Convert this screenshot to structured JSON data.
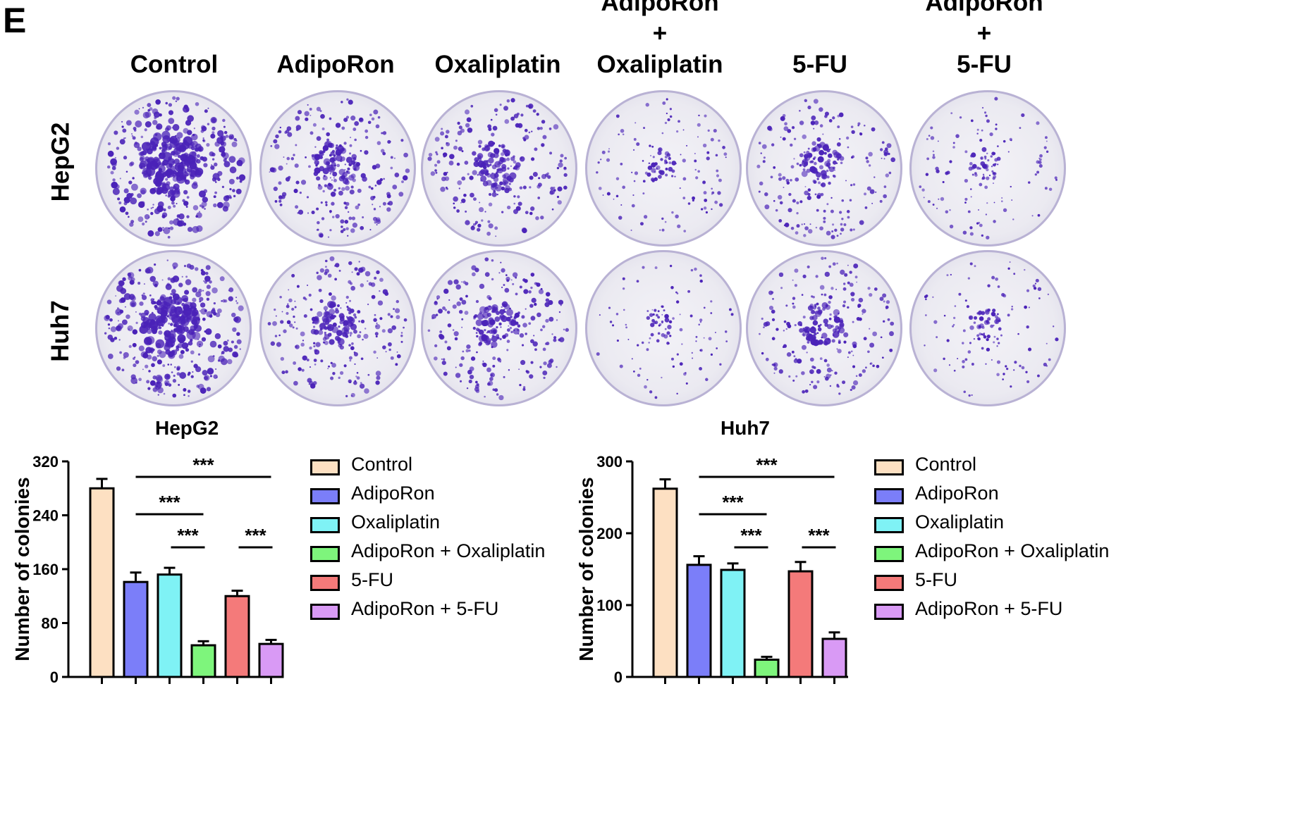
{
  "panel_label": "E",
  "column_headers": [
    {
      "lines": [
        "Control"
      ]
    },
    {
      "lines": [
        "AdipoRon"
      ]
    },
    {
      "lines": [
        "Oxaliplatin"
      ]
    },
    {
      "lines": [
        "AdipoRon",
        "+",
        "Oxaliplatin"
      ]
    },
    {
      "lines": [
        "5-FU"
      ]
    },
    {
      "lines": [
        "AdipoRon",
        "+",
        "5-FU"
      ]
    }
  ],
  "row_labels": [
    "HepG2",
    "Huh7"
  ],
  "colors": {
    "Control": "#fde0c2",
    "AdipoRon": "#7b7ef9",
    "Oxaliplatin": "#7ff2f5",
    "AdipoRon + Oxaliplatin": "#7ef57c",
    "5-FU": "#f47a7a",
    "AdipoRon + 5-FU": "#d99af5",
    "colony": "#4a22b8"
  },
  "plate_density": {
    "HepG2": [
      1.0,
      0.55,
      0.55,
      0.2,
      0.45,
      0.2
    ],
    "Huh7": [
      0.95,
      0.55,
      0.55,
      0.12,
      0.5,
      0.18
    ]
  },
  "chart_data": [
    {
      "type": "bar",
      "title": "HepG2",
      "ylabel": "Number of colonies",
      "xlabel": "",
      "ylim": [
        0,
        320
      ],
      "yticks": [
        0,
        80,
        160,
        240,
        320
      ],
      "categories": [
        "Control",
        "AdipoRon",
        "Oxaliplatin",
        "AdipoRon + Oxaliplatin",
        "5-FU",
        "AdipoRon + 5-FU"
      ],
      "values": [
        280,
        141,
        152,
        47,
        120,
        49
      ],
      "errors": [
        14,
        14,
        10,
        6,
        8,
        6
      ],
      "significance": [
        {
          "from": "AdipoRon",
          "to": "AdipoRon + 5-FU",
          "label": "***",
          "level": 1
        },
        {
          "from": "AdipoRon",
          "to": "AdipoRon + Oxaliplatin",
          "label": "***",
          "level": 2
        },
        {
          "from": "Oxaliplatin",
          "to": "AdipoRon + Oxaliplatin",
          "label": "***",
          "level": 3
        },
        {
          "from": "5-FU",
          "to": "AdipoRon + 5-FU",
          "label": "***",
          "level": 3
        }
      ],
      "legend": [
        "Control",
        "AdipoRon",
        "Oxaliplatin",
        "AdipoRon + Oxaliplatin",
        "5-FU",
        "AdipoRon + 5-FU"
      ]
    },
    {
      "type": "bar",
      "title": "Huh7",
      "ylabel": "Number of colonies",
      "xlabel": "",
      "ylim": [
        0,
        300
      ],
      "yticks": [
        0,
        100,
        200,
        300
      ],
      "categories": [
        "Control",
        "AdipoRon",
        "Oxaliplatin",
        "AdipoRon + Oxaliplatin",
        "5-FU",
        "AdipoRon + 5-FU"
      ],
      "values": [
        262,
        156,
        149,
        24,
        147,
        53
      ],
      "errors": [
        13,
        12,
        9,
        4,
        13,
        9
      ],
      "significance": [
        {
          "from": "AdipoRon",
          "to": "AdipoRon + 5-FU",
          "label": "***",
          "level": 1
        },
        {
          "from": "AdipoRon",
          "to": "AdipoRon + Oxaliplatin",
          "label": "***",
          "level": 2
        },
        {
          "from": "Oxaliplatin",
          "to": "AdipoRon + Oxaliplatin",
          "label": "***",
          "level": 3
        },
        {
          "from": "5-FU",
          "to": "AdipoRon + 5-FU",
          "label": "***",
          "level": 3
        }
      ],
      "legend": [
        "Control",
        "AdipoRon",
        "Oxaliplatin",
        "AdipoRon + Oxaliplatin",
        "5-FU",
        "AdipoRon + 5-FU"
      ]
    }
  ]
}
